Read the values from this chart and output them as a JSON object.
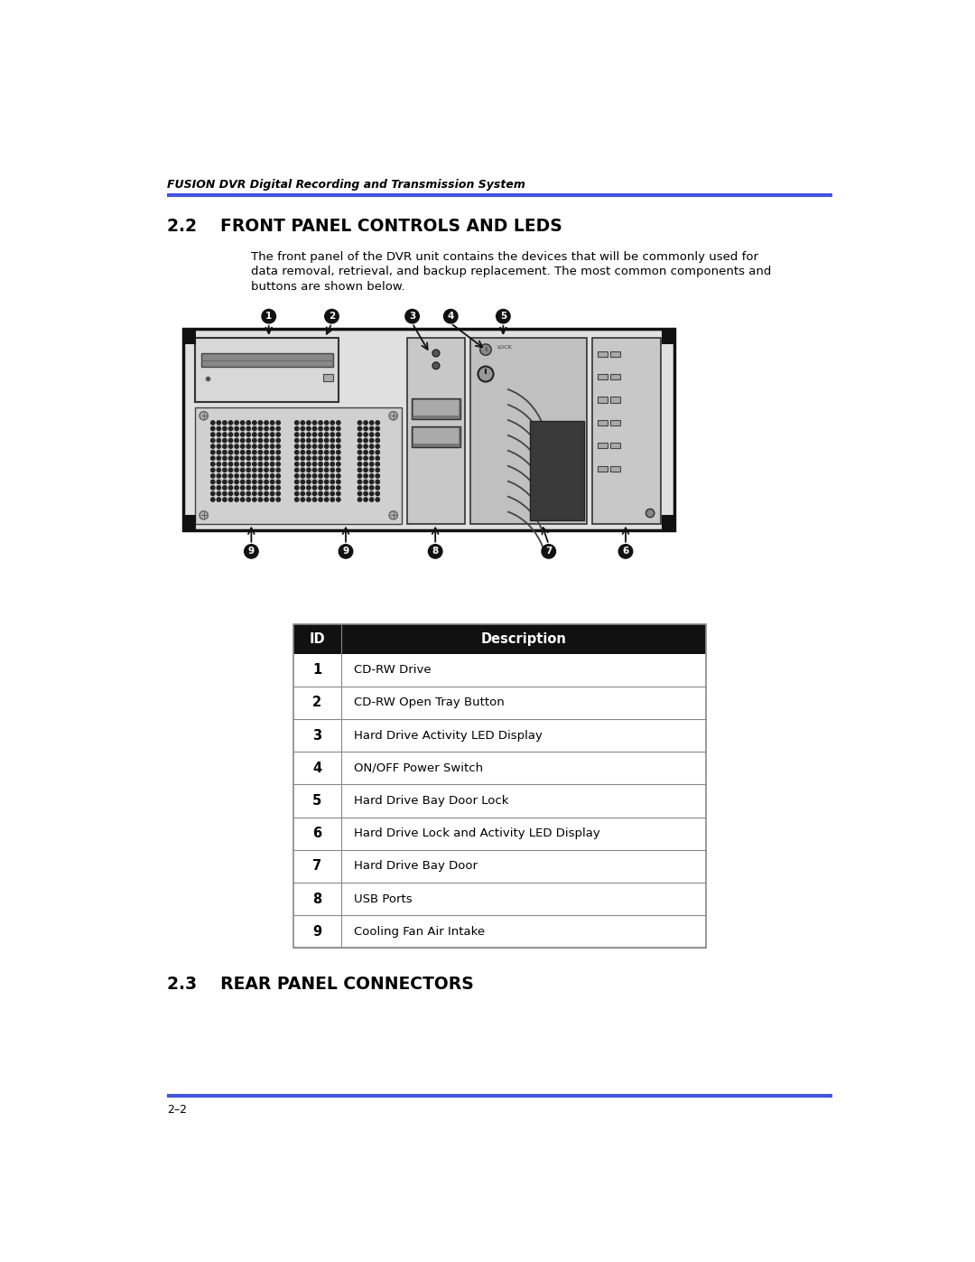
{
  "page_title": "FUSION DVR Digital Recording and Transmission System",
  "section_title": "2.2    FRONT PANEL CONTROLS AND LEDS",
  "body_line1": "The front panel of the DVR unit contains the devices that will be commonly used for",
  "body_line2": "data removal, retrieval, and backup replacement. The most common components and",
  "body_line3": "buttons are shown below.",
  "table_headers": [
    "ID",
    "Description"
  ],
  "table_rows": [
    [
      "1",
      "CD-RW Drive"
    ],
    [
      "2",
      "CD-RW Open Tray Button"
    ],
    [
      "3",
      "Hard Drive Activity LED Display"
    ],
    [
      "4",
      "ON/OFF Power Switch"
    ],
    [
      "5",
      "Hard Drive Bay Door Lock"
    ],
    [
      "6",
      "Hard Drive Lock and Activity LED Display"
    ],
    [
      "7",
      "Hard Drive Bay Door"
    ],
    [
      "8",
      "USB Ports"
    ],
    [
      "9",
      "Cooling Fan Air Intake"
    ]
  ],
  "section2_title": "2.3    REAR PANEL CONNECTORS",
  "footer_text": "2–2",
  "header_line_color": "#4455dd",
  "footer_line_color": "#4455dd",
  "table_header_bg": "#111111",
  "table_header_text": "#ffffff",
  "table_border": "#888888",
  "bg_color": "#ffffff",
  "text_color": "#000000"
}
